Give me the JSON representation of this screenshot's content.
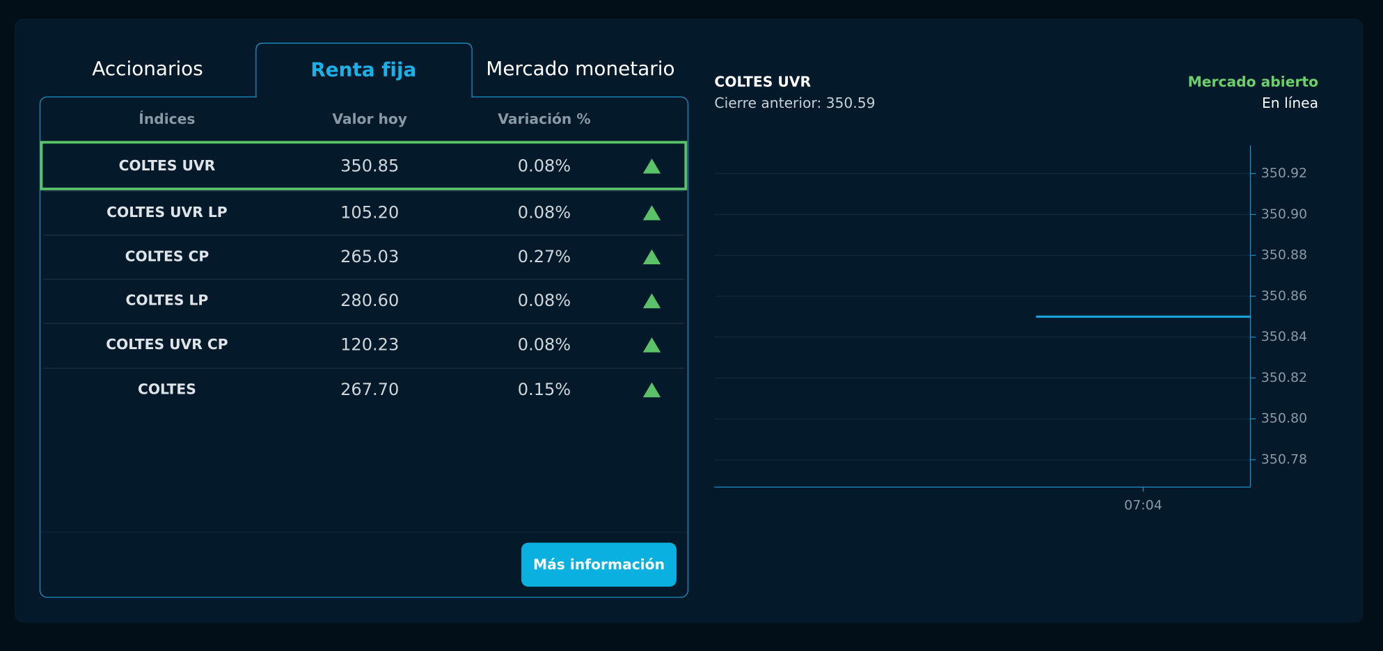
{
  "tabs": [
    "Accionarios",
    "Renta fija",
    "Mercado monetario"
  ],
  "table": {
    "headers": [
      "Índices",
      "Valor hoy",
      "Variación %"
    ],
    "rows": [
      [
        "COLTES UVR",
        "350.85",
        "0.08%"
      ],
      [
        "COLTES UVR LP",
        "105.20",
        "0.08%"
      ],
      [
        "COLTES CP",
        "265.03",
        "0.27%"
      ],
      [
        "COLTES LP",
        "280.60",
        "0.08%"
      ],
      [
        "COLTES UVR CP",
        "120.23",
        "0.08%"
      ],
      [
        "COLTES",
        "267.70",
        "0.15%"
      ]
    ]
  },
  "button": "Más información",
  "chart_data": {
    "type": "line",
    "title": "COLTES UVR",
    "subtitle": "Cierre anterior: 350.59",
    "status": "Mercado abierto",
    "status_detail": "En línea",
    "x": [
      423,
      425
    ],
    "values": [
      350.85,
      350.85
    ],
    "color": "#1aa6dc",
    "xlim": [
      420,
      425
    ],
    "xticks": [
      {
        "value": 424,
        "label": "07:04"
      }
    ],
    "ylim": [
      350.7666,
      350.9338
    ],
    "yticks": [
      {
        "value": 350.78,
        "label": "350.78"
      },
      {
        "value": 350.8,
        "label": "350.80"
      },
      {
        "value": 350.82,
        "label": "350.82"
      },
      {
        "value": 350.84,
        "label": "350.84"
      },
      {
        "value": 350.86,
        "label": "350.86"
      },
      {
        "value": 350.88,
        "label": "350.88"
      },
      {
        "value": 350.9,
        "label": "350.90"
      },
      {
        "value": 350.92,
        "label": "350.92"
      }
    ],
    "grid": true
  }
}
